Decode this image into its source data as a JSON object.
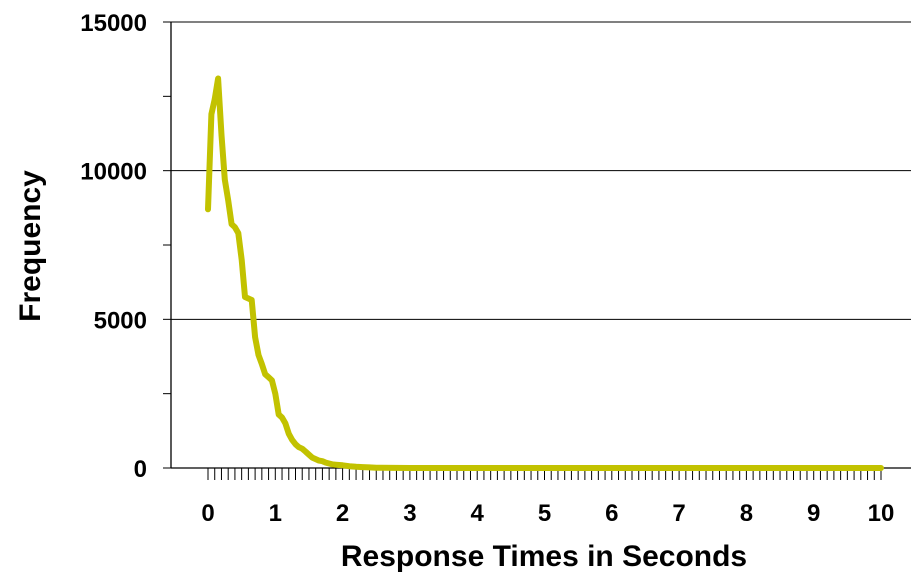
{
  "chart_data": {
    "type": "line",
    "title": "",
    "xlabel": "Response Times in Seconds",
    "ylabel": "Frequency",
    "xlim": [
      0,
      10
    ],
    "ylim": [
      0,
      15000
    ],
    "x_ticks": [
      0,
      1,
      2,
      3,
      4,
      5,
      6,
      7,
      8,
      9,
      10
    ],
    "y_ticks": [
      0,
      5000,
      10000,
      15000
    ],
    "x_tick_labels": [
      "0",
      "1",
      "2",
      "3",
      "4",
      "5",
      "6",
      "7",
      "8",
      "9",
      "10"
    ],
    "y_tick_labels": [
      "0",
      "5000",
      "10000",
      "15000"
    ],
    "minor_x_tick_step": 0.1,
    "grid": "horizontal",
    "legend": "none",
    "series": [
      {
        "color": "#c2c200",
        "x": [
          0,
          0.05,
          0.1,
          0.15,
          0.2,
          0.25,
          0.3,
          0.35,
          0.4,
          0.45,
          0.5,
          0.55,
          0.6,
          0.65,
          0.7,
          0.75,
          0.8,
          0.85,
          0.9,
          0.95,
          1.0,
          1.05,
          1.1,
          1.15,
          1.2,
          1.25,
          1.3,
          1.35,
          1.4,
          1.45,
          1.5,
          1.55,
          1.6,
          1.65,
          1.7,
          1.75,
          1.8,
          1.85,
          1.9,
          1.95,
          2.0,
          2.1,
          2.2,
          2.3,
          2.4,
          2.5,
          3,
          4,
          5,
          6,
          7,
          8,
          9,
          10
        ],
        "values": [
          8700,
          11900,
          12400,
          13100,
          11200,
          9700,
          9000,
          8200,
          8100,
          7900,
          7000,
          5750,
          5700,
          5650,
          4400,
          3800,
          3500,
          3150,
          3050,
          2950,
          2500,
          1800,
          1700,
          1500,
          1150,
          950,
          800,
          700,
          650,
          550,
          450,
          350,
          300,
          250,
          230,
          180,
          150,
          120,
          110,
          100,
          90,
          60,
          40,
          30,
          20,
          10,
          0,
          0,
          0,
          0,
          0,
          0,
          0,
          0
        ]
      }
    ]
  }
}
